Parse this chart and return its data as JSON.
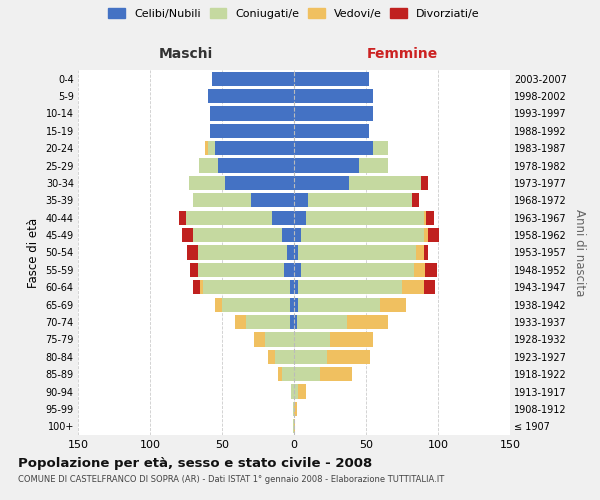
{
  "age_groups": [
    "100+",
    "95-99",
    "90-94",
    "85-89",
    "80-84",
    "75-79",
    "70-74",
    "65-69",
    "60-64",
    "55-59",
    "50-54",
    "45-49",
    "40-44",
    "35-39",
    "30-34",
    "25-29",
    "20-24",
    "15-19",
    "10-14",
    "5-9",
    "0-4"
  ],
  "birth_years": [
    "≤ 1907",
    "1908-1912",
    "1913-1917",
    "1918-1922",
    "1923-1927",
    "1928-1932",
    "1933-1937",
    "1938-1942",
    "1943-1947",
    "1948-1952",
    "1953-1957",
    "1958-1962",
    "1963-1967",
    "1968-1972",
    "1973-1977",
    "1978-1982",
    "1983-1987",
    "1988-1992",
    "1993-1997",
    "1998-2002",
    "2003-2007"
  ],
  "male": {
    "celibi": [
      0,
      0,
      0,
      0,
      0,
      0,
      3,
      3,
      3,
      7,
      5,
      8,
      15,
      30,
      48,
      53,
      55,
      58,
      58,
      60,
      57
    ],
    "coniugati": [
      1,
      1,
      2,
      8,
      13,
      20,
      30,
      47,
      60,
      60,
      62,
      62,
      60,
      40,
      25,
      13,
      5,
      0,
      0,
      0,
      0
    ],
    "vedovi": [
      0,
      0,
      0,
      3,
      5,
      8,
      8,
      5,
      2,
      0,
      0,
      0,
      0,
      0,
      0,
      0,
      2,
      0,
      0,
      0,
      0
    ],
    "divorziati": [
      0,
      0,
      0,
      0,
      0,
      0,
      0,
      0,
      5,
      5,
      7,
      8,
      5,
      0,
      0,
      0,
      0,
      0,
      0,
      0,
      0
    ]
  },
  "female": {
    "nubili": [
      0,
      0,
      0,
      0,
      0,
      0,
      2,
      3,
      3,
      5,
      3,
      5,
      8,
      10,
      38,
      45,
      55,
      52,
      55,
      55,
      52
    ],
    "coniugate": [
      0,
      0,
      3,
      18,
      23,
      25,
      35,
      57,
      72,
      78,
      82,
      85,
      82,
      72,
      50,
      20,
      10,
      0,
      0,
      0,
      0
    ],
    "vedove": [
      1,
      2,
      5,
      22,
      30,
      30,
      28,
      18,
      15,
      8,
      5,
      3,
      2,
      0,
      0,
      0,
      0,
      0,
      0,
      0,
      0
    ],
    "divorziate": [
      0,
      0,
      0,
      0,
      0,
      0,
      0,
      0,
      8,
      8,
      3,
      8,
      5,
      5,
      5,
      0,
      0,
      0,
      0,
      0,
      0
    ]
  },
  "colors": {
    "celibi_nubili": "#4472c4",
    "coniugati": "#c5d9a0",
    "vedovi": "#f0c060",
    "divorziati": "#c0211f"
  },
  "xlim": 150,
  "title": "Popolazione per età, sesso e stato civile - 2008",
  "subtitle": "COMUNE DI CASTELFRANCO DI SOPRA (AR) - Dati ISTAT 1° gennaio 2008 - Elaborazione TUTTITALIA.IT",
  "xlabel_left": "Maschi",
  "xlabel_right": "Femmine",
  "ylabel": "Fasce di età",
  "ylabel_right": "Anni di nascita",
  "bg_color": "#f0f0f0",
  "plot_bg": "#ffffff"
}
